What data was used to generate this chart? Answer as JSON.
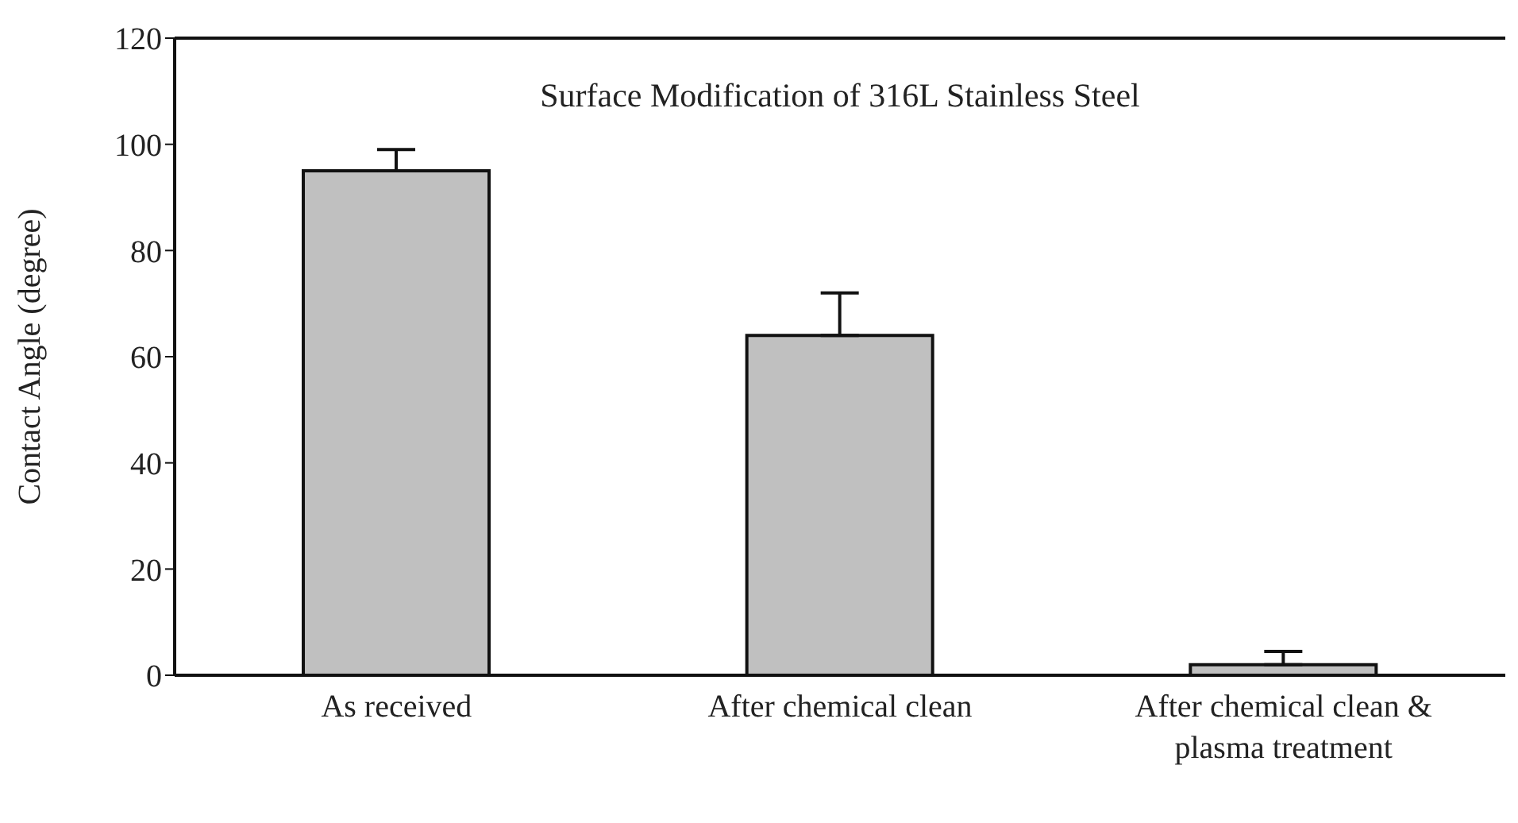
{
  "chart_data": {
    "type": "bar",
    "title": "Surface Modification of 316L Stainless Steel",
    "ylabel": "Contact Angle (degree)",
    "categories": [
      "As received",
      "After chemical clean",
      "After chemical clean & plasma treatment"
    ],
    "values": [
      95,
      64,
      2
    ],
    "errors": [
      [
        95,
        99
      ],
      [
        64,
        72
      ],
      [
        2,
        4.5
      ]
    ],
    "color": "#c0c0c0",
    "ylim": [
      0,
      120
    ],
    "yticks": [
      0,
      20,
      40,
      60,
      80,
      100,
      120
    ],
    "grid": false
  }
}
